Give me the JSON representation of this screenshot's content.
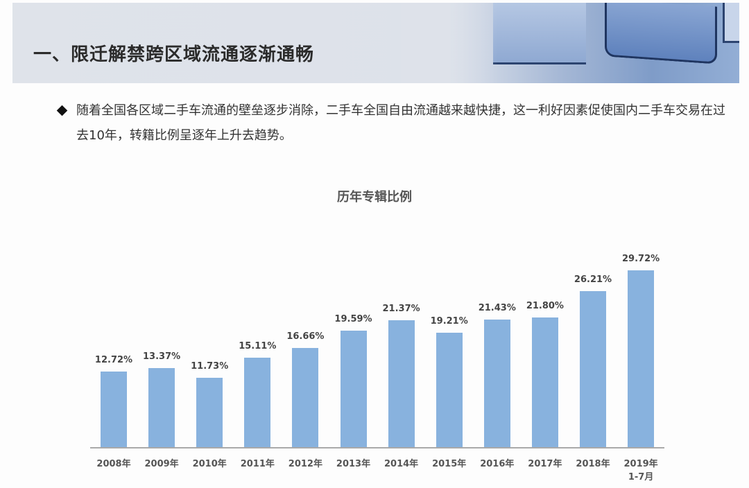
{
  "header": {
    "title": "一、限迁解禁跨区域流通逐渐通畅",
    "image": "blue-cubes-decoration"
  },
  "bullet": {
    "icon": "diamond-bullet-icon",
    "text": "随着全国各区域二手车流通的壁垒逐步消除，二手车全国自由流通越来越快捷，这一利好因素促使国内二手车交易在过去10年，转籍比例呈逐年上升去趋势。"
  },
  "chart_data": {
    "type": "bar",
    "title": "历年专辑比例",
    "xlabel": "",
    "ylabel": "",
    "categories": [
      "2008年",
      "2009年",
      "2010年",
      "2011年",
      "2012年",
      "2013年",
      "2014年",
      "2015年",
      "2016年",
      "2017年",
      "2018年",
      "2019年 1-7月"
    ],
    "category_lines": [
      [
        "2008年"
      ],
      [
        "2009年"
      ],
      [
        "2010年"
      ],
      [
        "2011年"
      ],
      [
        "2012年"
      ],
      [
        "2013年"
      ],
      [
        "2014年"
      ],
      [
        "2015年"
      ],
      [
        "2016年"
      ],
      [
        "2017年"
      ],
      [
        "2018年"
      ],
      [
        "2019年",
        "1-7月"
      ]
    ],
    "values": [
      12.72,
      13.37,
      11.73,
      15.11,
      16.66,
      19.59,
      21.37,
      19.21,
      21.43,
      21.8,
      26.21,
      29.72
    ],
    "labels": [
      "12.72%",
      "13.37%",
      "11.73%",
      "15.11%",
      "16.66%",
      "19.59%",
      "21.37%",
      "19.21%",
      "21.43%",
      "21.80%",
      "26.21%",
      "29.72%"
    ],
    "ylim": [
      0,
      35
    ],
    "grid": false,
    "legend": "none",
    "bar_color": "#88b2de"
  }
}
